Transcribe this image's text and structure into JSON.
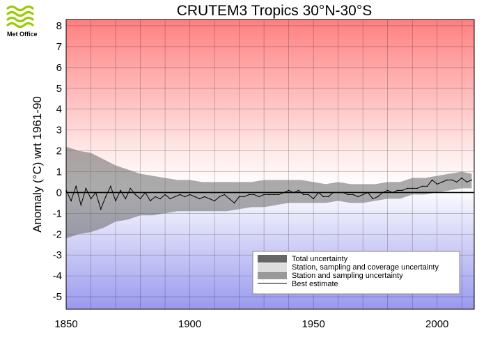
{
  "logo": {
    "text": "Met Office",
    "icon": "met-office-wave-logo",
    "color": "#99cc00"
  },
  "chart_data": {
    "type": "line",
    "title": "CRUTEM3 Tropics 30°N-30°S",
    "xlabel": "",
    "ylabel": "Anomaly (°C) wrt 1961-90",
    "xlim": [
      1850,
      2015
    ],
    "ylim": [
      -5.6,
      8.3
    ],
    "xticks": [
      1850,
      1900,
      1950,
      2000
    ],
    "yticks": [
      -5,
      -4,
      -3,
      -2,
      -1,
      0,
      1,
      2,
      3,
      4,
      5,
      6,
      7,
      8
    ],
    "grid": true,
    "background": {
      "top": "#ff8080",
      "bottom": "#9999ee"
    },
    "legend_position": "bottom-right",
    "series": [
      {
        "name": "Total uncertainty",
        "color": "#666666",
        "x": [
          1850,
          1855,
          1860,
          1865,
          1870,
          1875,
          1880,
          1885,
          1890,
          1895,
          1900,
          1905,
          1910,
          1915,
          1920,
          1925,
          1930,
          1935,
          1940,
          1945,
          1950,
          1955,
          1960,
          1965,
          1970,
          1975,
          1980,
          1985,
          1990,
          1995,
          2000,
          2005,
          2010,
          2014
        ],
        "lower": [
          -2.2,
          -2.0,
          -1.9,
          -1.7,
          -1.4,
          -1.3,
          -1.1,
          -1.1,
          -1.0,
          -0.9,
          -0.9,
          -0.9,
          -0.9,
          -0.9,
          -0.8,
          -0.7,
          -0.7,
          -0.6,
          -0.5,
          -0.5,
          -0.5,
          -0.5,
          -0.4,
          -0.5,
          -0.5,
          -0.4,
          -0.3,
          -0.3,
          -0.1,
          -0.1,
          0.0,
          0.1,
          0.2,
          0.2
        ],
        "upper": [
          2.2,
          2.0,
          1.9,
          1.6,
          1.3,
          1.1,
          0.9,
          0.8,
          0.7,
          0.6,
          0.6,
          0.5,
          0.5,
          0.5,
          0.5,
          0.5,
          0.6,
          0.6,
          0.6,
          0.6,
          0.5,
          0.4,
          0.5,
          0.4,
          0.4,
          0.4,
          0.5,
          0.5,
          0.7,
          0.7,
          0.8,
          0.9,
          1.0,
          0.9
        ]
      },
      {
        "name": "Station, sampling and coverage uncertainty",
        "color": "#dddddd",
        "x": [],
        "lower": [],
        "upper": []
      },
      {
        "name": "Station and sampling uncertainty",
        "color": "#999999",
        "x": [],
        "lower": [],
        "upper": []
      },
      {
        "name": "Best estimate",
        "color": "#000000",
        "x": [
          1850,
          1852,
          1854,
          1856,
          1858,
          1860,
          1862,
          1864,
          1866,
          1868,
          1870,
          1872,
          1874,
          1876,
          1878,
          1880,
          1882,
          1884,
          1886,
          1888,
          1890,
          1892,
          1894,
          1896,
          1898,
          1900,
          1902,
          1904,
          1906,
          1908,
          1910,
          1912,
          1914,
          1916,
          1918,
          1920,
          1922,
          1924,
          1926,
          1928,
          1930,
          1932,
          1934,
          1936,
          1938,
          1940,
          1942,
          1944,
          1946,
          1948,
          1950,
          1952,
          1954,
          1956,
          1958,
          1960,
          1962,
          1964,
          1966,
          1968,
          1970,
          1972,
          1974,
          1976,
          1978,
          1980,
          1982,
          1984,
          1986,
          1988,
          1990,
          1992,
          1994,
          1996,
          1998,
          2000,
          2002,
          2004,
          2006,
          2008,
          2010,
          2012,
          2014
        ],
        "y": [
          0.1,
          -0.4,
          0.3,
          -0.6,
          0.2,
          -0.3,
          0.0,
          -0.8,
          -0.2,
          0.3,
          -0.4,
          0.1,
          -0.3,
          0.2,
          -0.1,
          -0.3,
          0.0,
          -0.4,
          -0.2,
          -0.3,
          -0.1,
          -0.3,
          -0.2,
          -0.1,
          -0.2,
          -0.1,
          -0.2,
          -0.3,
          -0.2,
          -0.3,
          -0.4,
          -0.2,
          -0.1,
          -0.3,
          -0.5,
          -0.2,
          -0.2,
          -0.1,
          -0.1,
          -0.2,
          -0.1,
          -0.1,
          -0.1,
          -0.1,
          0.0,
          0.1,
          0.0,
          0.1,
          -0.1,
          -0.1,
          -0.3,
          0.0,
          -0.2,
          -0.2,
          0.0,
          0.0,
          0.0,
          -0.1,
          -0.1,
          -0.2,
          -0.1,
          0.0,
          -0.3,
          -0.2,
          0.0,
          0.1,
          0.0,
          0.1,
          0.1,
          0.2,
          0.2,
          0.2,
          0.3,
          0.3,
          0.6,
          0.4,
          0.5,
          0.6,
          0.6,
          0.5,
          0.7,
          0.5,
          0.6
        ]
      }
    ]
  }
}
